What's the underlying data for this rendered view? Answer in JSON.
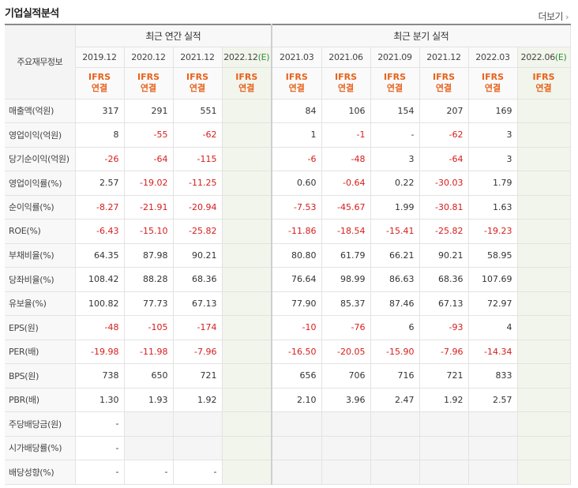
{
  "title": "기업실적분석",
  "more_label": "더보기",
  "header": {
    "row_header": "주요재무정보",
    "annual_group": "최근 연간 실적",
    "quarter_group": "최근 분기 실적",
    "estimate_mark": "(E)",
    "annual_periods": [
      "2019.12",
      "2020.12",
      "2021.12",
      "2022.12"
    ],
    "annual_estimate": [
      false,
      false,
      false,
      true
    ],
    "quarter_periods": [
      "2021.03",
      "2021.06",
      "2021.09",
      "2021.12",
      "2022.03",
      "2022.06"
    ],
    "quarter_estimate": [
      false,
      false,
      false,
      false,
      false,
      true
    ],
    "std_line1": "IFRS",
    "std_line2": "연결"
  },
  "rows": [
    {
      "label": "매출액(억원)",
      "annual": [
        "317",
        "291",
        "551",
        ""
      ],
      "quarter": [
        "84",
        "106",
        "154",
        "207",
        "169",
        ""
      ]
    },
    {
      "label": "영업이익(억원)",
      "annual": [
        "8",
        "-55",
        "-62",
        ""
      ],
      "quarter": [
        "1",
        "-1",
        "-",
        "-62",
        "3",
        ""
      ]
    },
    {
      "label": "당기순이익(억원)",
      "annual": [
        "-26",
        "-64",
        "-115",
        ""
      ],
      "quarter": [
        "-6",
        "-48",
        "3",
        "-64",
        "3",
        ""
      ]
    },
    {
      "label": "영업이익률(%)",
      "annual": [
        "2.57",
        "-19.02",
        "-11.25",
        ""
      ],
      "quarter": [
        "0.60",
        "-0.64",
        "0.22",
        "-30.03",
        "1.79",
        ""
      ]
    },
    {
      "label": "순이익률(%)",
      "annual": [
        "-8.27",
        "-21.91",
        "-20.94",
        ""
      ],
      "quarter": [
        "-7.53",
        "-45.67",
        "1.99",
        "-30.81",
        "1.63",
        ""
      ]
    },
    {
      "label": "ROE(%)",
      "annual": [
        "-6.43",
        "-15.10",
        "-25.82",
        ""
      ],
      "quarter": [
        "-11.86",
        "-18.54",
        "-15.41",
        "-25.82",
        "-19.23",
        ""
      ]
    },
    {
      "label": "부채비율(%)",
      "annual": [
        "64.35",
        "87.98",
        "90.21",
        ""
      ],
      "quarter": [
        "80.80",
        "61.79",
        "66.21",
        "90.21",
        "58.95",
        ""
      ]
    },
    {
      "label": "당좌비율(%)",
      "annual": [
        "108.42",
        "88.28",
        "68.36",
        ""
      ],
      "quarter": [
        "76.64",
        "98.99",
        "86.63",
        "68.36",
        "107.69",
        ""
      ]
    },
    {
      "label": "유보율(%)",
      "annual": [
        "100.82",
        "77.73",
        "67.13",
        ""
      ],
      "quarter": [
        "77.90",
        "85.37",
        "87.46",
        "67.13",
        "72.97",
        ""
      ]
    },
    {
      "label": "EPS(원)",
      "annual": [
        "-48",
        "-105",
        "-174",
        ""
      ],
      "quarter": [
        "-10",
        "-76",
        "6",
        "-93",
        "4",
        ""
      ]
    },
    {
      "label": "PER(배)",
      "annual": [
        "-19.98",
        "-11.98",
        "-7.96",
        ""
      ],
      "quarter": [
        "-16.50",
        "-20.05",
        "-15.90",
        "-7.96",
        "-14.34",
        ""
      ]
    },
    {
      "label": "BPS(원)",
      "annual": [
        "738",
        "650",
        "721",
        ""
      ],
      "quarter": [
        "656",
        "706",
        "716",
        "721",
        "833",
        ""
      ]
    },
    {
      "label": "PBR(배)",
      "annual": [
        "1.30",
        "1.93",
        "1.92",
        ""
      ],
      "quarter": [
        "2.10",
        "3.96",
        "2.47",
        "1.92",
        "2.57",
        ""
      ]
    },
    {
      "label": "주당배당금(원)",
      "annual": [
        "-",
        "",
        "",
        ""
      ],
      "quarter": [
        "",
        "",
        "",
        "",
        "",
        ""
      ]
    },
    {
      "label": "시가배당률(%)",
      "annual": [
        "-",
        "",
        "",
        ""
      ],
      "quarter": [
        "",
        "",
        "",
        "",
        "",
        ""
      ]
    },
    {
      "label": "배당성향(%)",
      "annual": [
        "-",
        "-",
        "-",
        ""
      ],
      "quarter": [
        "",
        "",
        "",
        "",
        "",
        ""
      ]
    }
  ],
  "colors": {
    "negative": "#d61c1c",
    "standard": "#e8621c",
    "estimate": "#2f8f3a"
  }
}
